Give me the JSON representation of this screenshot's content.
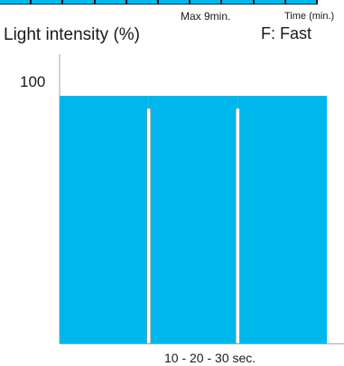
{
  "chart_data": {
    "type": "bar",
    "x_unit": "sec.",
    "ylabel": "Light intensity (%)",
    "y_tick_labels": [
      "100"
    ],
    "ylim": [
      0,
      100
    ],
    "segments": [
      {
        "start": 0,
        "end": 10,
        "value": 100
      },
      {
        "start": 10,
        "end": 20,
        "value": 100
      },
      {
        "start": 20,
        "end": 30,
        "value": 100
      }
    ],
    "interruption_marks_at": [
      10,
      20
    ],
    "annotations": {
      "max_time": "Max 9min.",
      "time_axis": "Time (min.)",
      "mode": "F: Fast",
      "x_note": "10 - 20 - 30 sec."
    },
    "colors": {
      "bar": "#00b7eb",
      "axis": "#a6a6a6",
      "gap": "#ffffff",
      "gap_outline": "#8a8a8a",
      "strip_divider": "#1a1a1a"
    },
    "top_strip": {
      "segments": 10,
      "color": "#00b7eb"
    }
  }
}
